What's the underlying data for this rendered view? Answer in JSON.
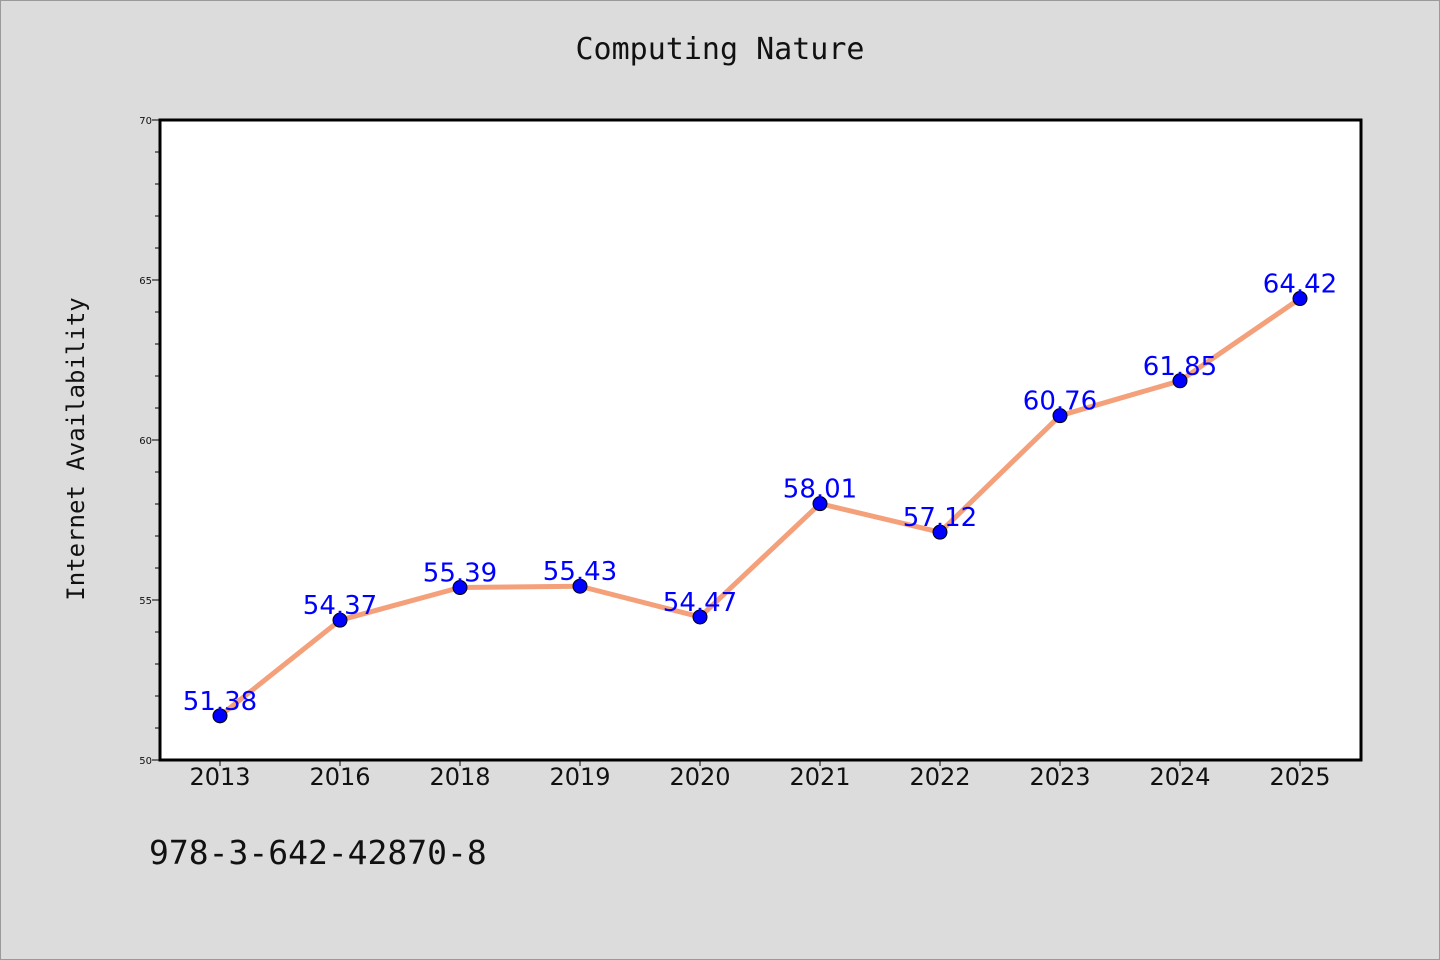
{
  "chart_data": {
    "type": "line",
    "title": "Computing Nature",
    "ylabel": "Internet Availability",
    "xlabel": "",
    "categories": [
      "2013",
      "2016",
      "2018",
      "2019",
      "2020",
      "2021",
      "2022",
      "2023",
      "2024",
      "2025"
    ],
    "series": [
      {
        "values": [
          51.38,
          54.37,
          55.39,
          55.43,
          54.47,
          58.01,
          57.12,
          60.76,
          61.85,
          64.42
        ]
      }
    ],
    "data_labels": [
      "51.38",
      "54.37",
      "55.39",
      "55.43",
      "54.47",
      "58.01",
      "57.12",
      "60.76",
      "61.85",
      "64.42"
    ],
    "ylim": [
      50,
      70
    ],
    "y_ticks": [
      "50",
      "55",
      "60",
      "65",
      "70"
    ],
    "grid": false,
    "legend": "none",
    "colors": {
      "line": "#f4a07a",
      "marker": "#0000ff",
      "data_label": "#0000ff",
      "background": "#dcdcdc",
      "plot_background": "#ffffff"
    }
  },
  "footer_text": "978-3-642-42870-8"
}
